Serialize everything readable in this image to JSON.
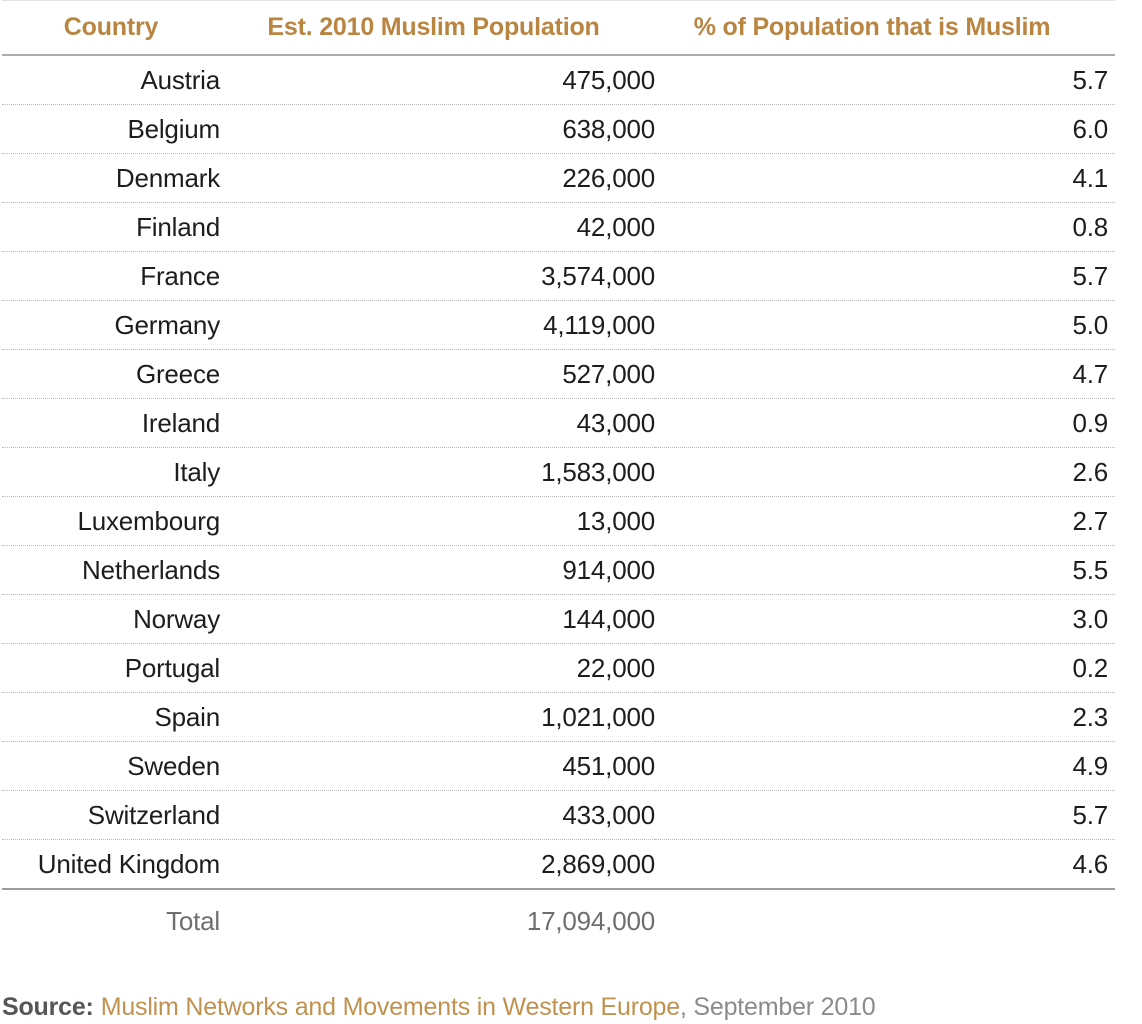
{
  "table": {
    "columns": [
      {
        "label": "Country"
      },
      {
        "label": "Est. 2010 Muslim Population"
      },
      {
        "label": "% of Population that is Muslim"
      }
    ],
    "rows": [
      {
        "country": "Austria",
        "population": "475,000",
        "percent": "5.7"
      },
      {
        "country": "Belgium",
        "population": "638,000",
        "percent": "6.0"
      },
      {
        "country": "Denmark",
        "population": "226,000",
        "percent": "4.1"
      },
      {
        "country": "Finland",
        "population": "42,000",
        "percent": "0.8"
      },
      {
        "country": "France",
        "population": "3,574,000",
        "percent": "5.7"
      },
      {
        "country": "Germany",
        "population": "4,119,000",
        "percent": "5.0"
      },
      {
        "country": "Greece",
        "population": "527,000",
        "percent": "4.7"
      },
      {
        "country": "Ireland",
        "population": "43,000",
        "percent": "0.9"
      },
      {
        "country": "Italy",
        "population": "1,583,000",
        "percent": "2.6"
      },
      {
        "country": "Luxembourg",
        "population": "13,000",
        "percent": "2.7"
      },
      {
        "country": "Netherlands",
        "population": "914,000",
        "percent": "5.5"
      },
      {
        "country": "Norway",
        "population": "144,000",
        "percent": "3.0"
      },
      {
        "country": "Portugal",
        "population": "22,000",
        "percent": "0.2"
      },
      {
        "country": "Spain",
        "population": "1,021,000",
        "percent": "2.3"
      },
      {
        "country": "Sweden",
        "population": "451,000",
        "percent": "4.9"
      },
      {
        "country": "Switzerland",
        "population": "433,000",
        "percent": "5.7"
      },
      {
        "country": "United Kingdom",
        "population": "2,869,000",
        "percent": "4.6"
      }
    ],
    "total": {
      "label": "Total",
      "population": "17,094,000"
    }
  },
  "source": {
    "prefix": "Source:",
    "link": "Muslim Networks and Movements in Western Europe",
    "suffix": ", September 2010"
  },
  "colors": {
    "header_text": "#b98541",
    "source_link": "#c1914e",
    "source_label": "#555658",
    "source_date": "#8b8b8d",
    "total_text": "#6e6e70",
    "data_text": "#1d1d1f",
    "dotted_divider": "#b8b8b8",
    "header_rule": "#ababab",
    "total_rule": "#9e9e9e"
  },
  "chart_data": {
    "type": "table",
    "title": "",
    "columns": [
      "Country",
      "Est. 2010 Muslim Population",
      "% of Population that is Muslim"
    ],
    "rows": [
      [
        "Austria",
        475000,
        5.7
      ],
      [
        "Belgium",
        638000,
        6.0
      ],
      [
        "Denmark",
        226000,
        4.1
      ],
      [
        "Finland",
        42000,
        0.8
      ],
      [
        "France",
        3574000,
        5.7
      ],
      [
        "Germany",
        4119000,
        5.0
      ],
      [
        "Greece",
        527000,
        4.7
      ],
      [
        "Ireland",
        43000,
        0.9
      ],
      [
        "Italy",
        1583000,
        2.6
      ],
      [
        "Luxembourg",
        13000,
        2.7
      ],
      [
        "Netherlands",
        914000,
        5.5
      ],
      [
        "Norway",
        144000,
        3.0
      ],
      [
        "Portugal",
        22000,
        0.2
      ],
      [
        "Spain",
        1021000,
        2.3
      ],
      [
        "Sweden",
        451000,
        4.9
      ],
      [
        "Switzerland",
        433000,
        5.7
      ],
      [
        "United Kingdom",
        2869000,
        4.6
      ]
    ],
    "total": {
      "label": "Total",
      "population": 17094000
    },
    "source": "Source: Muslim Networks and Movements in Western Europe, September 2010"
  }
}
